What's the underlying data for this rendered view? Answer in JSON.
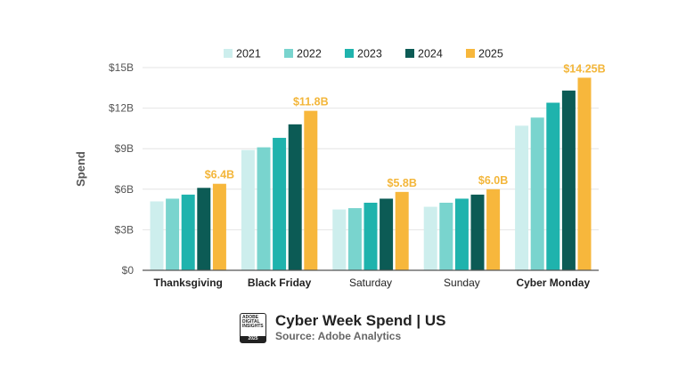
{
  "chart_data": {
    "type": "bar",
    "ylabel": "Spend",
    "xlabel": "",
    "ylim": [
      0,
      15
    ],
    "yticks": [
      0,
      3,
      6,
      9,
      12,
      15
    ],
    "ytick_labels": [
      "$0",
      "$3B",
      "$6B",
      "$9B",
      "$12B",
      "$15B"
    ],
    "categories": [
      "Thanksgiving",
      "Black Friday",
      "Saturday",
      "Sunday",
      "Cyber Monday"
    ],
    "category_bold": [
      true,
      true,
      false,
      false,
      true
    ],
    "series": [
      {
        "name": "2021",
        "color": "#cdeeed",
        "values": [
          5.1,
          8.9,
          4.5,
          4.7,
          10.7
        ]
      },
      {
        "name": "2022",
        "color": "#79d4ce",
        "values": [
          5.3,
          9.1,
          4.6,
          5.0,
          11.3
        ]
      },
      {
        "name": "2023",
        "color": "#1fb3ad",
        "values": [
          5.6,
          9.8,
          5.0,
          5.3,
          12.4
        ]
      },
      {
        "name": "2024",
        "color": "#0c5b55",
        "values": [
          6.1,
          10.8,
          5.3,
          5.6,
          13.3
        ]
      },
      {
        "name": "2025",
        "color": "#f7b73c",
        "values": [
          6.4,
          11.8,
          5.8,
          6.0,
          14.25
        ]
      }
    ],
    "data_labels": [
      "$6.4B",
      "$11.8B",
      "$5.8B",
      "$6.0B",
      "$14.25B"
    ],
    "grid": true,
    "legend_position": "top"
  },
  "footer": {
    "badge_lines": [
      "ADOBE",
      "DIGITAL",
      "INSIGHTS"
    ],
    "badge_year": "2025",
    "title": "Cyber Week Spend | US",
    "source": "Source: Adobe Analytics"
  }
}
